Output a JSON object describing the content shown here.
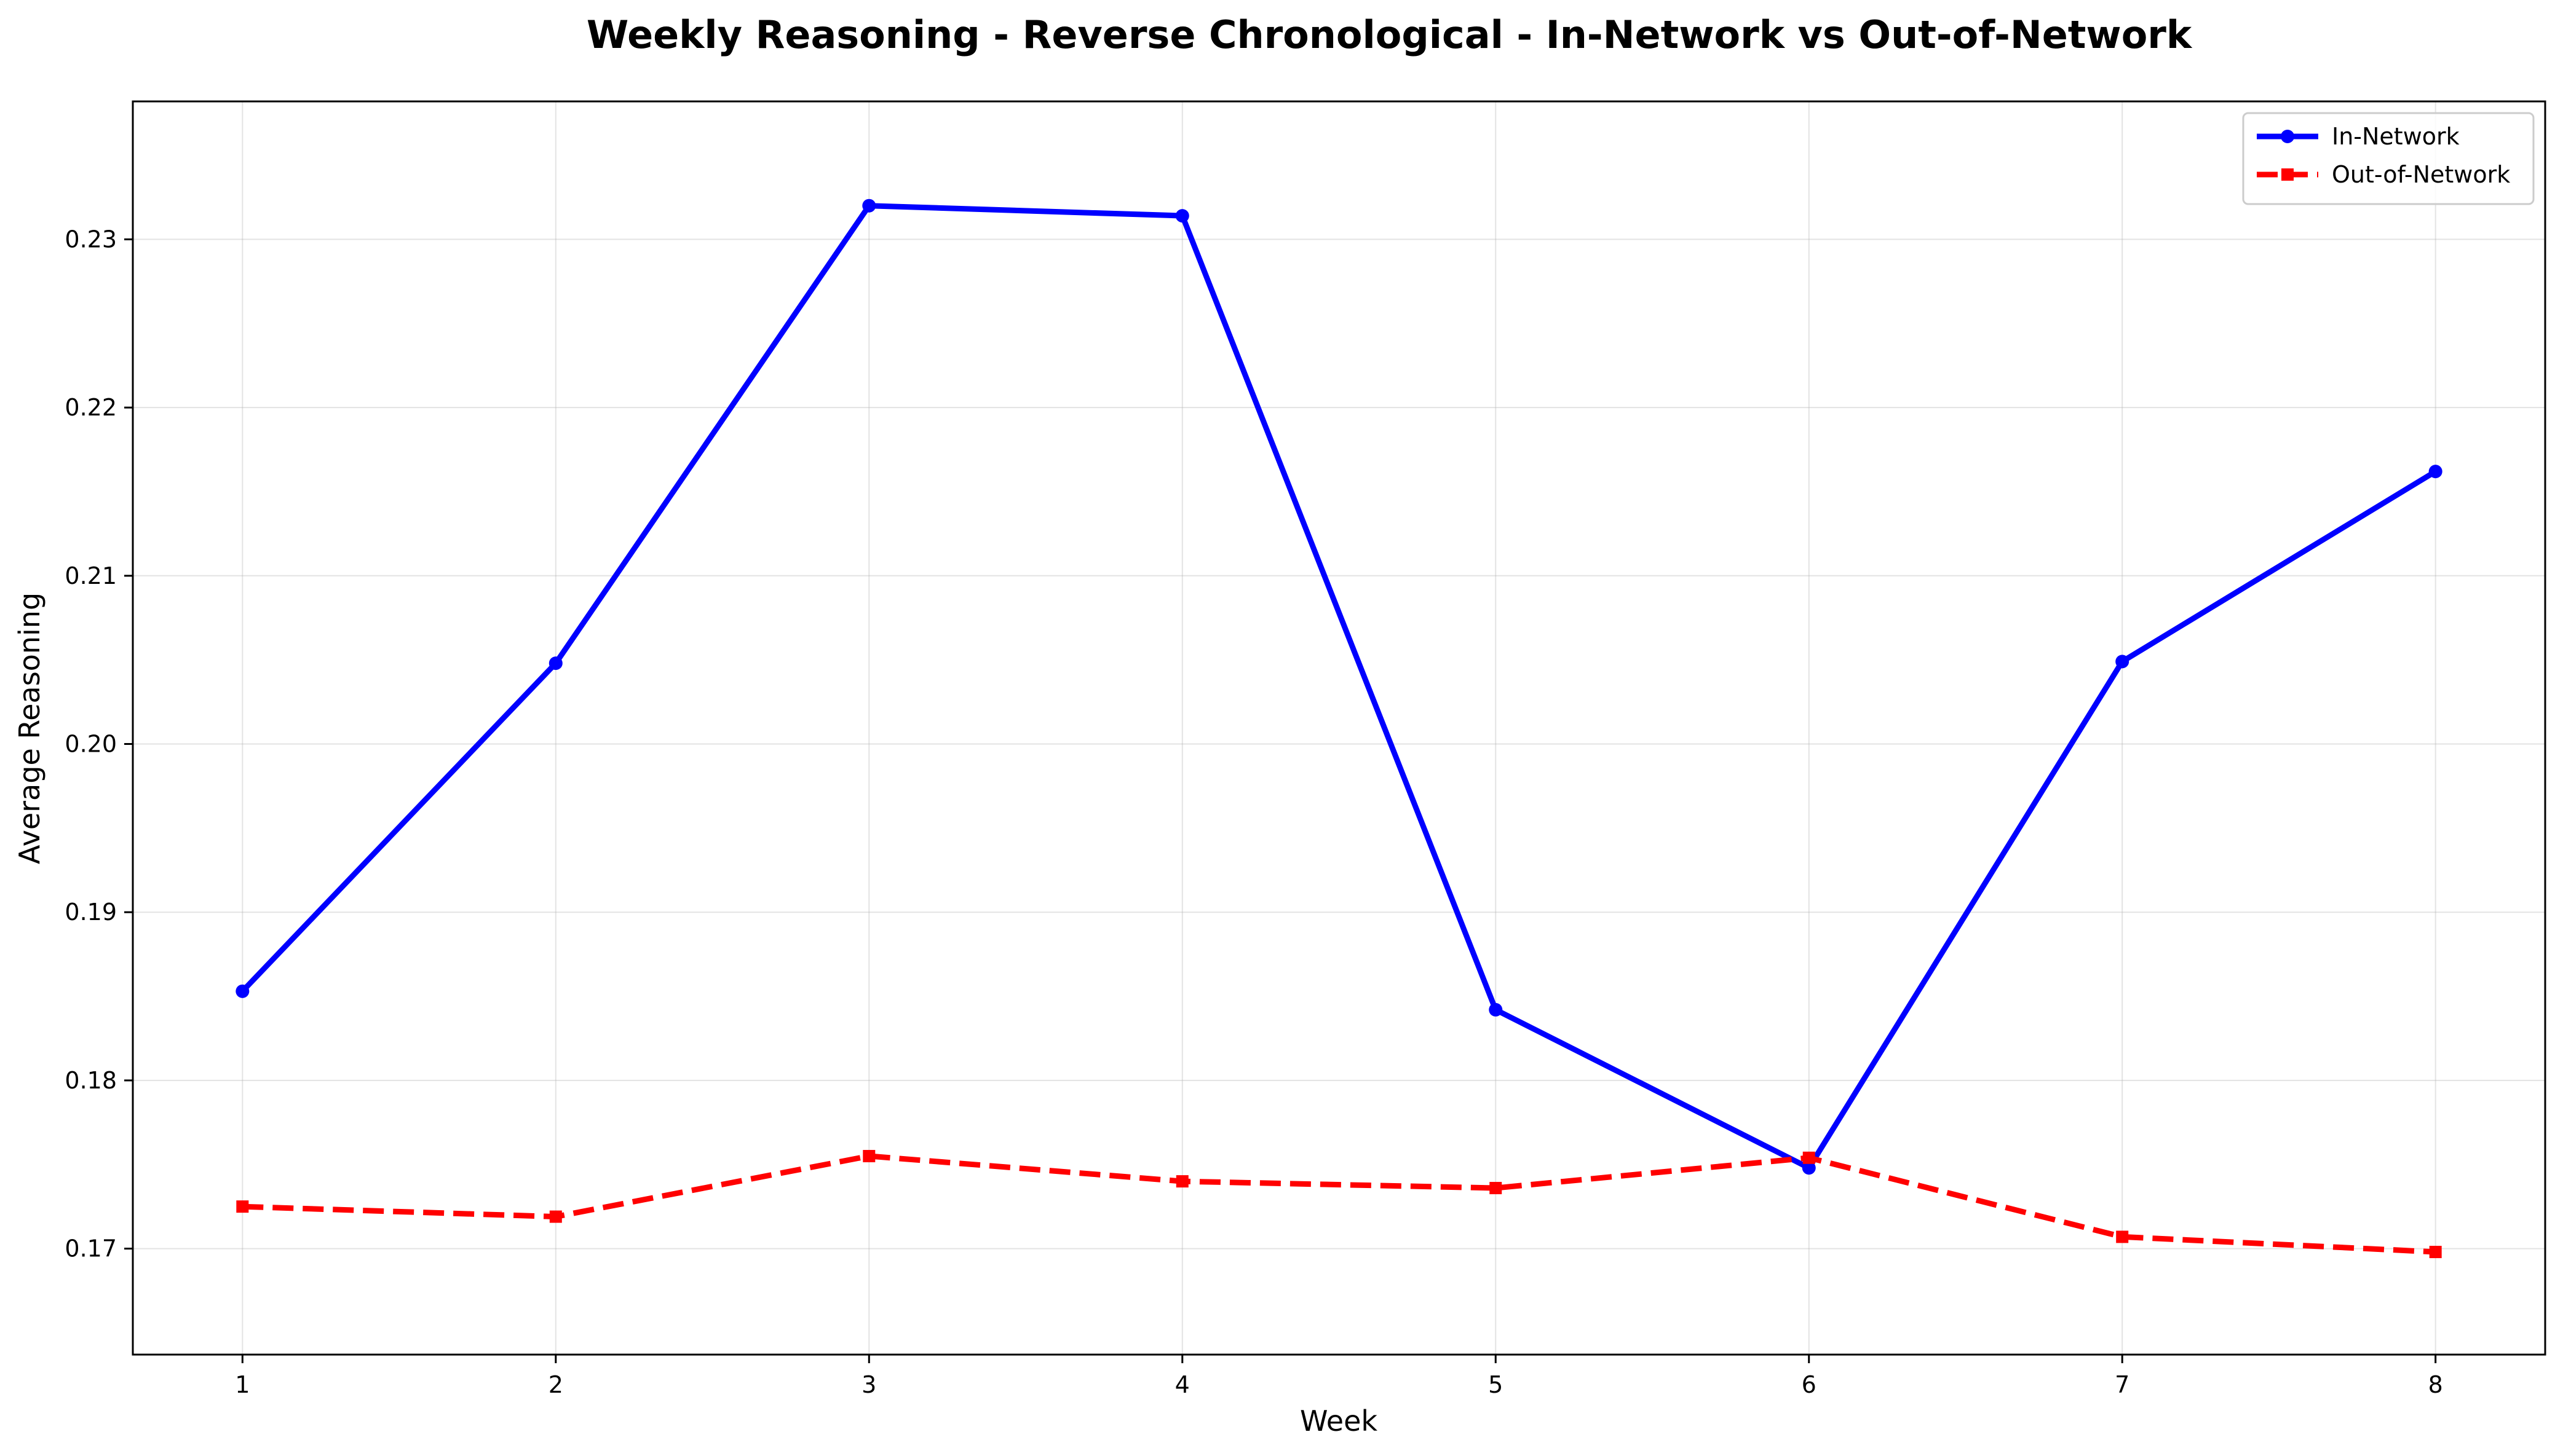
{
  "chart_data": {
    "type": "line",
    "title": "Weekly Reasoning - Reverse Chronological - In-Network vs Out-of-Network",
    "xlabel": "Week",
    "ylabel": "Average Reasoning",
    "x": [
      1,
      2,
      3,
      4,
      5,
      6,
      7,
      8
    ],
    "xlim": [
      0.65,
      8.35
    ],
    "ylim": [
      0.1637,
      0.2382
    ],
    "yticks": [
      0.17,
      0.18,
      0.19,
      0.2,
      0.21,
      0.22,
      0.23
    ],
    "ytick_labels": [
      "0.17",
      "0.18",
      "0.19",
      "0.20",
      "0.21",
      "0.22",
      "0.23"
    ],
    "xtick_labels": [
      "1",
      "2",
      "3",
      "4",
      "5",
      "6",
      "7",
      "8"
    ],
    "grid": true,
    "legend_position": "top-right",
    "series": [
      {
        "name": "In-Network",
        "color": "#0000ff",
        "line_style": "solid",
        "marker": "circle",
        "values": [
          0.1853,
          0.2048,
          0.232,
          0.2314,
          0.1842,
          0.1748,
          0.2049,
          0.2162
        ]
      },
      {
        "name": "Out-of-Network",
        "color": "#ff0000",
        "line_style": "dashed",
        "marker": "square",
        "values": [
          0.1725,
          0.1719,
          0.1755,
          0.174,
          0.1736,
          0.1754,
          0.1707,
          0.1698
        ]
      }
    ]
  }
}
